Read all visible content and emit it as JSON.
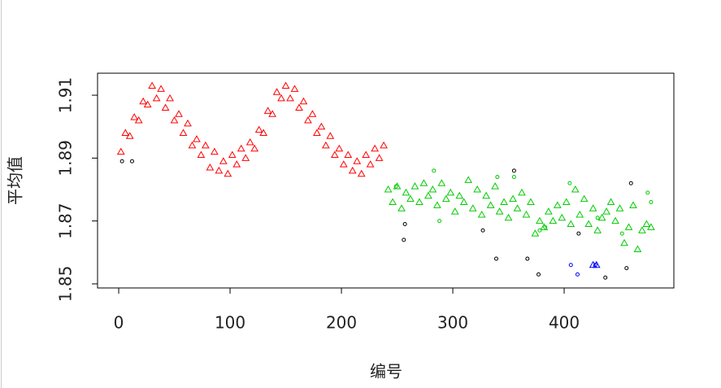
{
  "chart_data": {
    "type": "scatter",
    "x_label": "编号",
    "y_label": "平均值",
    "xlim": [
      -19,
      498.5
    ],
    "ylim": [
      1.8487,
      1.917
    ],
    "xticks": [
      0,
      100,
      200,
      300,
      400
    ],
    "yticks": [
      1.85,
      1.87,
      1.89,
      1.91
    ],
    "series": [
      {
        "name": "red-triangle",
        "color": "#ff0000",
        "marker": "triangle",
        "x": [
          2,
          6,
          10,
          14,
          18,
          22,
          26,
          30,
          34,
          38,
          42,
          46,
          50,
          54,
          58,
          62,
          66,
          70,
          74,
          78,
          82,
          86,
          90,
          94,
          98,
          102,
          106,
          110,
          114,
          118,
          122,
          126,
          130,
          134,
          138,
          142,
          146,
          150,
          154,
          158,
          162,
          166,
          170,
          174,
          178,
          182,
          186,
          190,
          194,
          198,
          202,
          206,
          210,
          214,
          218,
          222,
          226,
          230,
          234,
          238
        ],
        "values": [
          1.892,
          1.898,
          1.897,
          1.903,
          1.902,
          1.908,
          1.907,
          1.913,
          1.909,
          1.912,
          1.906,
          1.909,
          1.902,
          1.904,
          1.898,
          1.901,
          1.894,
          1.896,
          1.891,
          1.894,
          1.887,
          1.892,
          1.886,
          1.889,
          1.885,
          1.891,
          1.888,
          1.893,
          1.89,
          1.895,
          1.893,
          1.899,
          1.898,
          1.905,
          1.904,
          1.911,
          1.909,
          1.913,
          1.909,
          1.912,
          1.906,
          1.908,
          1.902,
          1.904,
          1.898,
          1.9,
          1.894,
          1.897,
          1.891,
          1.893,
          1.888,
          1.891,
          1.886,
          1.889,
          1.885,
          1.891,
          1.888,
          1.893,
          1.89,
          1.894
        ]
      },
      {
        "name": "green-triangle",
        "color": "#00cc00",
        "marker": "triangle",
        "x": [
          242,
          246,
          250,
          254,
          258,
          262,
          266,
          270,
          274,
          278,
          282,
          286,
          290,
          294,
          298,
          302,
          306,
          310,
          314,
          318,
          322,
          326,
          330,
          334,
          338,
          342,
          346,
          350,
          354,
          358,
          362,
          366,
          370,
          374,
          378,
          382,
          386,
          390,
          394,
          398,
          402,
          406,
          410,
          414,
          418,
          422,
          426,
          430,
          434,
          438,
          442,
          446,
          450,
          454,
          458,
          462,
          466,
          470,
          474,
          478
        ],
        "values": [
          1.88,
          1.876,
          1.881,
          1.874,
          1.879,
          1.877,
          1.881,
          1.876,
          1.882,
          1.878,
          1.88,
          1.875,
          1.882,
          1.877,
          1.879,
          1.873,
          1.878,
          1.876,
          1.883,
          1.874,
          1.88,
          1.872,
          1.878,
          1.875,
          1.881,
          1.873,
          1.876,
          1.871,
          1.877,
          1.874,
          1.879,
          1.872,
          1.876,
          1.866,
          1.87,
          1.868,
          1.873,
          1.87,
          1.875,
          1.871,
          1.876,
          1.869,
          1.88,
          1.872,
          1.877,
          1.869,
          1.874,
          1.867,
          1.871,
          1.873,
          1.876,
          1.87,
          1.874,
          1.863,
          1.868,
          1.875,
          1.861,
          1.867,
          1.869,
          1.868
        ]
      },
      {
        "name": "green-circle",
        "color": "#00cc00",
        "marker": "circle",
        "x": [
          249,
          283,
          288,
          340,
          355,
          378,
          383,
          405,
          430,
          452,
          475,
          478
        ],
        "values": [
          1.881,
          1.886,
          1.87,
          1.884,
          1.884,
          1.867,
          1.868,
          1.882,
          1.871,
          1.866,
          1.879,
          1.876
        ]
      },
      {
        "name": "black-circle",
        "color": "#000000",
        "marker": "circle",
        "x": [
          3,
          12,
          256,
          257,
          327,
          339,
          355,
          367,
          377,
          413,
          437,
          456,
          460
        ],
        "values": [
          1.889,
          1.889,
          1.864,
          1.869,
          1.867,
          1.858,
          1.886,
          1.858,
          1.853,
          1.866,
          1.852,
          1.855,
          1.882
        ]
      },
      {
        "name": "blue-circle",
        "color": "#0000ff",
        "marker": "circle",
        "x": [
          406,
          412,
          428
        ],
        "values": [
          1.856,
          1.853,
          1.856
        ]
      },
      {
        "name": "blue-triangle",
        "color": "#0000ff",
        "marker": "triangle",
        "x": [
          426,
          429
        ],
        "values": [
          1.856,
          1.856
        ]
      }
    ]
  }
}
